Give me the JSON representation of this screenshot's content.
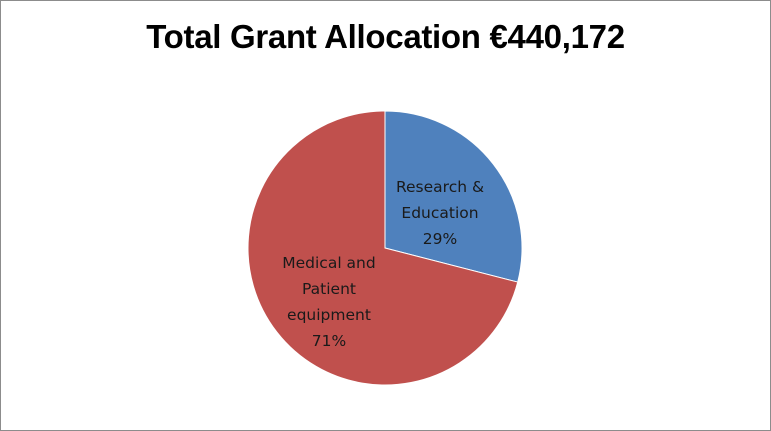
{
  "chart_data": {
    "type": "pie",
    "title": "Total Grant Allocation €440,172",
    "slices": [
      {
        "label": "Research & Education",
        "label_lines": [
          "Research &",
          "Education"
        ],
        "percent_label": "29%",
        "value": 29,
        "color": "#4f81bd"
      },
      {
        "label": "Medical and Patient equipment",
        "label_lines": [
          "Medical and",
          "Patient",
          "equipment"
        ],
        "percent_label": "71%",
        "value": 71,
        "color": "#c0504d"
      }
    ],
    "legend": "none",
    "data_labels": "inside"
  }
}
